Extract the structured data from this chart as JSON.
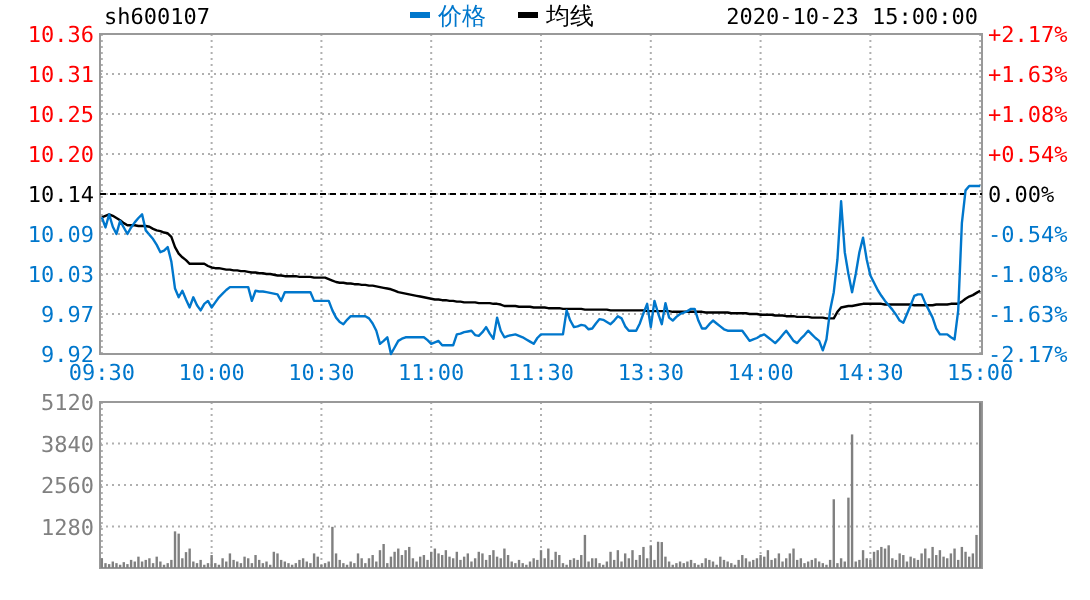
{
  "chart_data": [
    {
      "type": "line",
      "title": "sh600107",
      "annotations": [
        "2020-10-23 15:00:00"
      ],
      "categories": [
        "09:30",
        null,
        null,
        null,
        null,
        null,
        null,
        null,
        null,
        null,
        null,
        null,
        null,
        null,
        null,
        null,
        null,
        null,
        null,
        null,
        null,
        null,
        null,
        null,
        null,
        null,
        null,
        null,
        null,
        null,
        "10:00",
        null,
        null,
        null,
        null,
        null,
        null,
        null,
        null,
        null,
        null,
        null,
        null,
        null,
        null,
        null,
        null,
        null,
        null,
        null,
        null,
        null,
        null,
        null,
        null,
        null,
        null,
        null,
        null,
        null,
        "10:30",
        null,
        null,
        null,
        null,
        null,
        null,
        null,
        null,
        null,
        null,
        null,
        null,
        null,
        null,
        null,
        null,
        null,
        null,
        null,
        null,
        null,
        null,
        null,
        null,
        null,
        null,
        null,
        null,
        null,
        "11:00",
        null,
        null,
        null,
        null,
        null,
        null,
        null,
        null,
        null,
        null,
        null,
        null,
        null,
        null,
        null,
        null,
        null,
        null,
        null,
        null,
        null,
        null,
        null,
        null,
        null,
        null,
        null,
        null,
        null,
        "11:30",
        null,
        null,
        null,
        null,
        null,
        null,
        null,
        null,
        null,
        null,
        null,
        null,
        null,
        null,
        null,
        null,
        null,
        null,
        null,
        null,
        null,
        null,
        null,
        null,
        null,
        null,
        null,
        null,
        null,
        "13:30",
        null,
        null,
        null,
        null,
        null,
        null,
        null,
        null,
        null,
        null,
        null,
        null,
        null,
        null,
        null,
        null,
        null,
        null,
        null,
        null,
        null,
        null,
        null,
        null,
        null,
        null,
        null,
        null,
        null,
        "14:00",
        null,
        null,
        null,
        null,
        null,
        null,
        null,
        null,
        null,
        null,
        null,
        null,
        null,
        null,
        null,
        null,
        null,
        null,
        null,
        null,
        null,
        null,
        null,
        null,
        null,
        null,
        null,
        null,
        null,
        "14:30",
        null,
        null,
        null,
        null,
        null,
        null,
        null,
        null,
        null,
        null,
        null,
        null,
        null,
        null,
        null,
        null,
        null,
        null,
        null,
        null,
        null,
        null,
        null,
        null,
        null,
        null,
        null,
        null,
        null,
        "15:00"
      ],
      "series": [
        {
          "name": "价格",
          "color": "#0077cc",
          "values": [
            10.108,
            10.094,
            10.112,
            10.095,
            10.085,
            10.103,
            10.094,
            10.085,
            10.094,
            10.101,
            10.107,
            10.112,
            10.09,
            10.084,
            10.078,
            10.07,
            10.06,
            10.062,
            10.067,
            10.047,
            10.01,
            9.998,
            10.007,
            9.995,
            9.984,
            9.998,
            9.987,
            9.98,
            9.989,
            9.993,
            9.984,
            9.991,
            9.998,
            10.003,
            10.008,
            10.012,
            10.012,
            10.012,
            10.012,
            10.012,
            10.012,
            9.993,
            10.007,
            10.006,
            10.006,
            10.005,
            10.004,
            10.003,
            10.002,
            9.993,
            10.005,
            10.005,
            10.005,
            10.005,
            10.005,
            10.005,
            10.005,
            10.005,
            9.993,
            9.993,
            9.993,
            9.993,
            9.993,
            9.98,
            9.97,
            9.964,
            9.961,
            9.967,
            9.972,
            9.972,
            9.972,
            9.972,
            9.972,
            9.969,
            9.962,
            9.952,
            9.934,
            9.938,
            9.943,
            9.92,
            9.929,
            9.938,
            9.941,
            9.943,
            9.943,
            9.943,
            9.943,
            9.943,
            9.943,
            9.939,
            9.934,
            9.936,
            9.938,
            9.932,
            9.932,
            9.932,
            9.932,
            9.947,
            9.948,
            9.95,
            9.951,
            9.952,
            9.946,
            9.945,
            9.95,
            9.957,
            9.948,
            9.941,
            9.97,
            9.952,
            9.943,
            9.945,
            9.946,
            9.947,
            9.945,
            9.943,
            9.94,
            9.937,
            9.934,
            9.942,
            9.947,
            9.947,
            9.947,
            9.947,
            9.947,
            9.947,
            9.947,
            9.98,
            9.966,
            9.957,
            9.958,
            9.96,
            9.959,
            9.954,
            9.955,
            9.962,
            9.968,
            9.967,
            9.964,
            9.961,
            9.966,
            9.972,
            9.969,
            9.958,
            9.952,
            9.952,
            9.952,
            9.962,
            9.976,
            9.989,
            9.957,
            9.993,
            9.976,
            9.961,
            9.99,
            9.97,
            9.966,
            9.971,
            9.975,
            9.977,
            9.979,
            9.982,
            9.982,
            9.966,
            9.955,
            9.955,
            9.961,
            9.966,
            9.962,
            9.958,
            9.954,
            9.952,
            9.952,
            9.952,
            9.952,
            9.952,
            9.945,
            9.938,
            9.94,
            9.942,
            9.945,
            9.947,
            9.943,
            9.939,
            9.935,
            9.94,
            9.946,
            9.952,
            9.945,
            9.938,
            9.935,
            9.941,
            9.946,
            9.952,
            9.947,
            9.942,
            9.938,
            9.925,
            9.94,
            9.98,
            10.005,
            10.05,
            10.13,
            10.06,
            10.03,
            10.005,
            10.03,
            10.06,
            10.08,
            10.05,
            10.028,
            10.018,
            10.008,
            10.0,
            9.993,
            9.987,
            9.981,
            9.974,
            9.966,
            9.963,
            9.975,
            9.987,
            10.0,
            10.002,
            10.002,
            9.99,
            9.98,
            9.97,
            9.955,
            9.947,
            9.947,
            9.947,
            9.943,
            9.94,
            9.98,
            10.1,
            10.145,
            10.151,
            10.151,
            10.151,
            10.151
          ]
        },
        {
          "name": "均线",
          "color": "#000000",
          "values": [
            10.108,
            10.11,
            10.112,
            10.11,
            10.107,
            10.104,
            10.1,
            10.097,
            10.097,
            10.097,
            10.096,
            10.096,
            10.096,
            10.095,
            10.092,
            10.09,
            10.089,
            10.087,
            10.086,
            10.081,
            10.067,
            10.058,
            10.053,
            10.049,
            10.044,
            10.044,
            10.044,
            10.044,
            10.044,
            10.041,
            10.039,
            10.038,
            10.038,
            10.037,
            10.036,
            10.036,
            10.035,
            10.035,
            10.034,
            10.034,
            10.033,
            10.032,
            10.032,
            10.031,
            10.031,
            10.03,
            10.03,
            10.029,
            10.028,
            10.028,
            10.027,
            10.027,
            10.027,
            10.027,
            10.026,
            10.026,
            10.026,
            10.026,
            10.025,
            10.025,
            10.025,
            10.025,
            10.023,
            10.021,
            10.019,
            10.018,
            10.018,
            10.017,
            10.017,
            10.016,
            10.016,
            10.015,
            10.015,
            10.014,
            10.014,
            10.013,
            10.012,
            10.011,
            10.01,
            10.009,
            10.007,
            10.005,
            10.004,
            10.003,
            10.002,
            10.001,
            10.0,
            9.999,
            9.998,
            9.997,
            9.996,
            9.995,
            9.995,
            9.994,
            9.994,
            9.993,
            9.993,
            9.992,
            9.992,
            9.991,
            9.991,
            9.991,
            9.991,
            9.99,
            9.99,
            9.99,
            9.99,
            9.989,
            9.989,
            9.988,
            9.986,
            9.986,
            9.986,
            9.986,
            9.985,
            9.985,
            9.985,
            9.985,
            9.984,
            9.984,
            9.984,
            9.984,
            9.983,
            9.983,
            9.983,
            9.983,
            9.982,
            9.982,
            9.982,
            9.982,
            9.982,
            9.982,
            9.981,
            9.981,
            9.981,
            9.981,
            9.981,
            9.981,
            9.981,
            9.98,
            9.98,
            9.98,
            9.98,
            9.98,
            9.98,
            9.98,
            9.98,
            9.98,
            9.98,
            9.979,
            9.979,
            9.979,
            9.979,
            9.979,
            9.979,
            9.979,
            9.978,
            9.978,
            9.978,
            9.978,
            9.978,
            9.978,
            9.978,
            9.978,
            9.978,
            9.977,
            9.977,
            9.977,
            9.977,
            9.977,
            9.977,
            9.977,
            9.976,
            9.976,
            9.976,
            9.976,
            9.976,
            9.975,
            9.975,
            9.975,
            9.974,
            9.974,
            9.974,
            9.974,
            9.973,
            9.973,
            9.973,
            9.972,
            9.972,
            9.972,
            9.971,
            9.971,
            9.971,
            9.971,
            9.97,
            9.97,
            9.97,
            9.97,
            9.969,
            9.969,
            9.969,
            9.978,
            9.984,
            9.985,
            9.986,
            9.986,
            9.987,
            9.988,
            9.989,
            9.989,
            9.989,
            9.989,
            9.989,
            9.989,
            9.988,
            9.988,
            9.988,
            9.988,
            9.988,
            9.988,
            9.988,
            9.988,
            9.987,
            9.987,
            9.987,
            9.987,
            9.987,
            9.987,
            9.988,
            9.988,
            9.988,
            9.988,
            9.989,
            9.989,
            9.989,
            9.992,
            9.996,
            9.999,
            10.001,
            10.004,
            10.007
          ]
        }
      ],
      "ylim": [
        9.92,
        10.36
      ],
      "yticks": [
        9.92,
        {
          "value": 9.975,
          "label": "9.97"
        },
        10.03,
        {
          "value": 10.085,
          "label": "10.09"
        },
        10.14,
        {
          "value": 10.195,
          "label": "10.20"
        },
        10.25,
        {
          "value": 10.305,
          "label": "10.31"
        },
        10.36
      ],
      "y2lim": [
        -2.17,
        2.17
      ],
      "y2ticks": [
        {
          "value": -2.17,
          "label": "-2.17%"
        },
        {
          "value": -1.6275,
          "label": "-1.63%"
        },
        {
          "value": -1.085,
          "label": "-1.08%"
        },
        {
          "value": -0.5425,
          "label": "-0.54%"
        },
        {
          "value": 0,
          "label": "0.00%"
        },
        {
          "value": 0.5425,
          "label": "+0.54%"
        },
        {
          "value": 1.085,
          "label": "+1.08%"
        },
        {
          "value": 1.6275,
          "label": "+1.63%"
        },
        {
          "value": 2.17,
          "label": "+2.17%"
        }
      ],
      "ref_lines": [
        {
          "axis": "y",
          "value": 10.14,
          "color": "#000000",
          "line_style": "dashed"
        }
      ],
      "grid": true,
      "legend": "top"
    },
    {
      "type": "bar",
      "color": "#808080",
      "grid": true,
      "tick_labels": "y",
      "categories": [
        null,
        null,
        null,
        null,
        null,
        null,
        null,
        null,
        null,
        null,
        null,
        null,
        null,
        null,
        null,
        null,
        null,
        null,
        null,
        null,
        null,
        null,
        null,
        null,
        null,
        null,
        null,
        null,
        null,
        null,
        null,
        null,
        null,
        null,
        null,
        null,
        null,
        null,
        null,
        null,
        null,
        null,
        null,
        null,
        null,
        null,
        null,
        null,
        null,
        null,
        null,
        null,
        null,
        null,
        null,
        null,
        null,
        null,
        null,
        null,
        null,
        null,
        null,
        null,
        null,
        null,
        null,
        null,
        null,
        null,
        null,
        null,
        null,
        null,
        null,
        null,
        null,
        null,
        null,
        null,
        null,
        null,
        null,
        null,
        null,
        null,
        null,
        null,
        null,
        null,
        null,
        null,
        null,
        null,
        null,
        null,
        null,
        null,
        null,
        null,
        null,
        null,
        null,
        null,
        null,
        null,
        null,
        null,
        null,
        null,
        null,
        null,
        null,
        null,
        null,
        null,
        null,
        null,
        null,
        null,
        null,
        null,
        null,
        null,
        null,
        null,
        null,
        null,
        null,
        null,
        null,
        null,
        null,
        null,
        null,
        null,
        null,
        null,
        null,
        null,
        null,
        null,
        null,
        null,
        null,
        null,
        null,
        null,
        null,
        null,
        null,
        null,
        null,
        null,
        null,
        null,
        null,
        null,
        null,
        null,
        null,
        null,
        null,
        null,
        null,
        null,
        null,
        null,
        null,
        null,
        null,
        null,
        null,
        null,
        null,
        null,
        null,
        null,
        null,
        null,
        null,
        null,
        null,
        null,
        null,
        null,
        null,
        null,
        null,
        null,
        null,
        null,
        null,
        null,
        null,
        null,
        null,
        null,
        null,
        null,
        null,
        null,
        null,
        null,
        null,
        null,
        null,
        null,
        null,
        null,
        null,
        null,
        null,
        null,
        null,
        null,
        null,
        null,
        null,
        null,
        null,
        null,
        null,
        null,
        null,
        null,
        null,
        null,
        null,
        null,
        null,
        null,
        null,
        null,
        null,
        null,
        null,
        null,
        null,
        null,
        null
      ],
      "values": [
        300,
        150,
        120,
        200,
        150,
        100,
        180,
        120,
        250,
        200,
        350,
        200,
        250,
        300,
        150,
        350,
        200,
        100,
        150,
        250,
        1130,
        1060,
        300,
        490,
        600,
        200,
        150,
        250,
        100,
        150,
        400,
        150,
        100,
        300,
        200,
        450,
        250,
        200,
        150,
        350,
        300,
        150,
        400,
        250,
        150,
        200,
        100,
        500,
        450,
        250,
        200,
        150,
        100,
        150,
        250,
        300,
        200,
        150,
        450,
        350,
        100,
        150,
        200,
        1270,
        450,
        250,
        150,
        100,
        200,
        150,
        450,
        300,
        150,
        300,
        400,
        200,
        550,
        740,
        150,
        350,
        500,
        600,
        400,
        550,
        650,
        300,
        200,
        350,
        400,
        250,
        500,
        600,
        450,
        400,
        550,
        350,
        300,
        500,
        250,
        350,
        450,
        200,
        300,
        500,
        450,
        250,
        400,
        550,
        350,
        300,
        600,
        400,
        200,
        150,
        250,
        150,
        100,
        200,
        300,
        250,
        550,
        300,
        600,
        250,
        500,
        400,
        150,
        100,
        250,
        300,
        250,
        400,
        1020,
        200,
        300,
        300,
        150,
        100,
        200,
        500,
        250,
        550,
        200,
        450,
        300,
        550,
        250,
        400,
        650,
        300,
        700,
        250,
        810,
        800,
        350,
        200,
        100,
        150,
        200,
        150,
        200,
        250,
        150,
        100,
        150,
        300,
        250,
        200,
        100,
        350,
        250,
        200,
        150,
        100,
        250,
        400,
        300,
        200,
        250,
        300,
        400,
        350,
        550,
        250,
        300,
        450,
        200,
        300,
        450,
        600,
        250,
        300,
        150,
        200,
        250,
        300,
        200,
        150,
        100,
        250,
        2120,
        150,
        300,
        200,
        2170,
        4120,
        200,
        250,
        550,
        300,
        250,
        500,
        550,
        650,
        600,
        700,
        300,
        250,
        450,
        400,
        200,
        350,
        300,
        250,
        450,
        600,
        300,
        650,
        400,
        550,
        350,
        300,
        450,
        600,
        250,
        650,
        500,
        350,
        450,
        1020,
        5100
      ],
      "ylim": [
        0,
        5120
      ],
      "yticks": [
        1280,
        2560,
        3840,
        5120
      ]
    }
  ]
}
